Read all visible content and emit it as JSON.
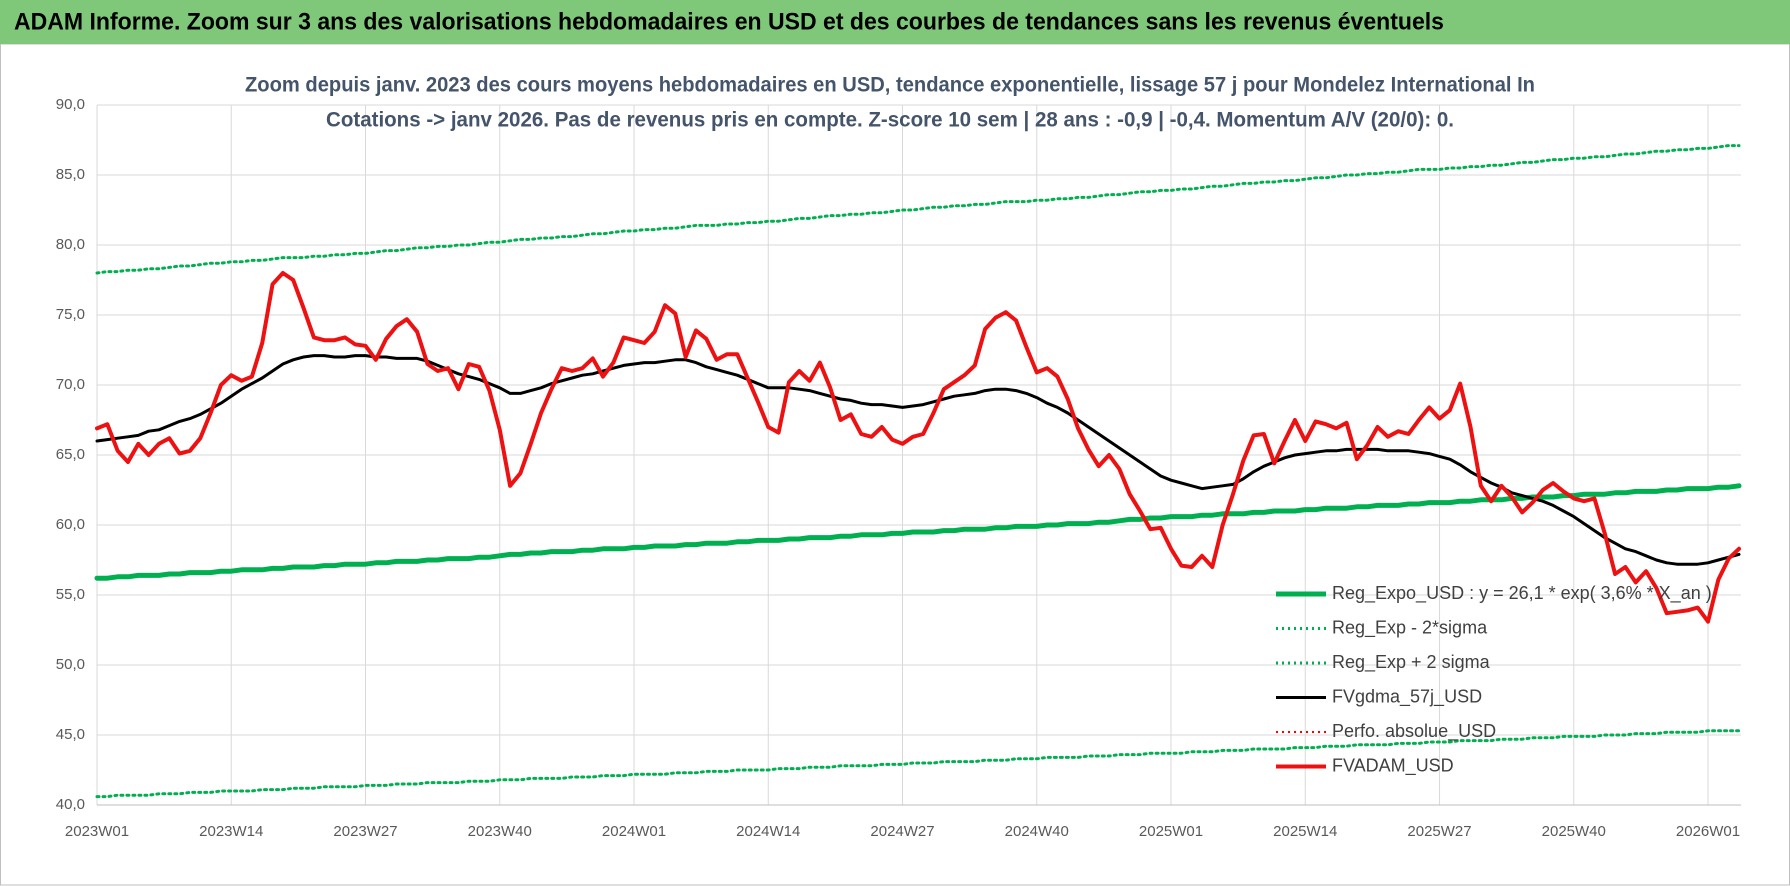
{
  "header": {
    "title": "ADAM Informe. Zoom sur 3 ans des valorisations hebdomadaires en USD et des courbes de tendances sans les revenus éventuels"
  },
  "chart_data": {
    "type": "line",
    "title": "Zoom depuis janv. 2023 des cours moyens hebdomadaires en USD, tendance exponentielle, lissage 57 j pour Mondelez International In",
    "subtitle": "Cotations -> janv 2026. Pas de revenus pris en compte. Z-score 10 sem | 28 ans : -0,9 | -0,4. Momentum A/V (20/0): 0.",
    "categories": [
      "2023W01",
      null,
      null,
      null,
      null,
      null,
      null,
      null,
      null,
      null,
      null,
      null,
      null,
      "2023W14",
      null,
      null,
      null,
      null,
      null,
      null,
      null,
      null,
      null,
      null,
      null,
      null,
      "2023W27",
      null,
      null,
      null,
      null,
      null,
      null,
      null,
      null,
      null,
      null,
      null,
      null,
      "2023W40",
      null,
      null,
      null,
      null,
      null,
      null,
      null,
      null,
      null,
      null,
      null,
      null,
      "2024W01",
      null,
      null,
      null,
      null,
      null,
      null,
      null,
      null,
      null,
      null,
      null,
      null,
      "2024W14",
      null,
      null,
      null,
      null,
      null,
      null,
      null,
      null,
      null,
      null,
      null,
      null,
      "2024W27",
      null,
      null,
      null,
      null,
      null,
      null,
      null,
      null,
      null,
      null,
      null,
      null,
      "2024W40",
      null,
      null,
      null,
      null,
      null,
      null,
      null,
      null,
      null,
      null,
      null,
      null,
      "2025W01",
      null,
      null,
      null,
      null,
      null,
      null,
      null,
      null,
      null,
      null,
      null,
      null,
      "2025W14",
      null,
      null,
      null,
      null,
      null,
      null,
      null,
      null,
      null,
      null,
      null,
      null,
      "2025W27",
      null,
      null,
      null,
      null,
      null,
      null,
      null,
      null,
      null,
      null,
      null,
      null,
      "2025W40",
      null,
      null,
      null,
      null,
      null,
      null,
      null,
      null,
      null,
      null,
      null,
      null,
      "2026W01",
      null,
      null,
      null
    ],
    "ylim": [
      40,
      90
    ],
    "yticks": [
      {
        "value": 40,
        "label": "40,0"
      },
      {
        "value": 45,
        "label": "45,0"
      },
      {
        "value": 50,
        "label": "50,0"
      },
      {
        "value": 55,
        "label": "55,0"
      },
      {
        "value": 60,
        "label": "60,0"
      },
      {
        "value": 65,
        "label": "65,0"
      },
      {
        "value": 70,
        "label": "70,0"
      },
      {
        "value": 75,
        "label": "75,0"
      },
      {
        "value": 80,
        "label": "80,0"
      },
      {
        "value": 85,
        "label": "85,0"
      },
      {
        "value": 90,
        "label": "90,0"
      }
    ],
    "grid": true,
    "legend": "bottom-right",
    "series": [
      {
        "name": "Reg_Expo_USD : y = 26,1 * exp( 3,6% * X_an )",
        "color": "#00b050",
        "line_style": "solid",
        "line_width": 5,
        "values": [
          56.2,
          56.2,
          56.3,
          56.3,
          56.4,
          56.4,
          56.4,
          56.5,
          56.5,
          56.6,
          56.6,
          56.6,
          56.7,
          56.7,
          56.8,
          56.8,
          56.8,
          56.9,
          56.9,
          57.0,
          57.0,
          57.0,
          57.1,
          57.1,
          57.2,
          57.2,
          57.2,
          57.3,
          57.3,
          57.4,
          57.4,
          57.4,
          57.5,
          57.5,
          57.6,
          57.6,
          57.6,
          57.7,
          57.7,
          57.8,
          57.9,
          57.9,
          58.0,
          58.0,
          58.1,
          58.1,
          58.1,
          58.2,
          58.2,
          58.3,
          58.3,
          58.3,
          58.4,
          58.4,
          58.5,
          58.5,
          58.5,
          58.6,
          58.6,
          58.7,
          58.7,
          58.7,
          58.8,
          58.8,
          58.9,
          58.9,
          58.9,
          59.0,
          59.0,
          59.1,
          59.1,
          59.1,
          59.2,
          59.2,
          59.3,
          59.3,
          59.3,
          59.4,
          59.4,
          59.5,
          59.5,
          59.5,
          59.6,
          59.6,
          59.7,
          59.7,
          59.7,
          59.8,
          59.8,
          59.9,
          59.9,
          59.9,
          60.0,
          60.0,
          60.1,
          60.1,
          60.1,
          60.2,
          60.2,
          60.3,
          60.4,
          60.4,
          60.5,
          60.5,
          60.6,
          60.6,
          60.6,
          60.7,
          60.7,
          60.8,
          60.8,
          60.8,
          60.9,
          60.9,
          61.0,
          61.0,
          61.0,
          61.1,
          61.1,
          61.2,
          61.2,
          61.2,
          61.3,
          61.3,
          61.4,
          61.4,
          61.4,
          61.5,
          61.5,
          61.6,
          61.6,
          61.6,
          61.7,
          61.7,
          61.8,
          61.8,
          61.8,
          61.9,
          61.9,
          62.0,
          62.0,
          62.0,
          62.1,
          62.1,
          62.2,
          62.2,
          62.2,
          62.3,
          62.3,
          62.4,
          62.4,
          62.4,
          62.5,
          62.5,
          62.6,
          62.6,
          62.6,
          62.7,
          62.7,
          62.8
        ]
      },
      {
        "name": "Reg_Exp - 2*sigma",
        "color": "#00b050",
        "line_style": "dotted",
        "line_width": 3,
        "values": [
          40.6,
          40.6,
          40.7,
          40.7,
          40.7,
          40.7,
          40.8,
          40.8,
          40.8,
          40.9,
          40.9,
          40.9,
          41.0,
          41.0,
          41.0,
          41.0,
          41.1,
          41.1,
          41.1,
          41.2,
          41.2,
          41.2,
          41.3,
          41.3,
          41.3,
          41.3,
          41.4,
          41.4,
          41.4,
          41.5,
          41.5,
          41.5,
          41.6,
          41.6,
          41.6,
          41.6,
          41.7,
          41.7,
          41.7,
          41.8,
          41.8,
          41.8,
          41.9,
          41.9,
          41.9,
          41.9,
          42.0,
          42.0,
          42.0,
          42.1,
          42.1,
          42.1,
          42.2,
          42.2,
          42.2,
          42.2,
          42.3,
          42.3,
          42.3,
          42.4,
          42.4,
          42.4,
          42.5,
          42.5,
          42.5,
          42.5,
          42.6,
          42.6,
          42.6,
          42.7,
          42.7,
          42.7,
          42.8,
          42.8,
          42.8,
          42.8,
          42.9,
          42.9,
          42.9,
          43.0,
          43.0,
          43.0,
          43.1,
          43.1,
          43.1,
          43.1,
          43.2,
          43.2,
          43.2,
          43.3,
          43.3,
          43.3,
          43.4,
          43.4,
          43.4,
          43.4,
          43.5,
          43.5,
          43.5,
          43.6,
          43.6,
          43.6,
          43.7,
          43.7,
          43.7,
          43.7,
          43.8,
          43.8,
          43.8,
          43.9,
          43.9,
          43.9,
          44.0,
          44.0,
          44.0,
          44.0,
          44.1,
          44.1,
          44.1,
          44.2,
          44.2,
          44.2,
          44.3,
          44.3,
          44.3,
          44.3,
          44.4,
          44.4,
          44.4,
          44.5,
          44.5,
          44.5,
          44.6,
          44.6,
          44.6,
          44.6,
          44.7,
          44.7,
          44.7,
          44.8,
          44.8,
          44.8,
          44.9,
          44.9,
          44.9,
          44.9,
          45.0,
          45.0,
          45.0,
          45.1,
          45.1,
          45.1,
          45.2,
          45.2,
          45.2,
          45.2,
          45.3,
          45.3,
          45.3,
          45.3
        ]
      },
      {
        "name": "Reg_Exp + 2 sigma",
        "color": "#00b050",
        "line_style": "dotted",
        "line_width": 3,
        "values": [
          78.0,
          78.1,
          78.1,
          78.2,
          78.2,
          78.3,
          78.3,
          78.4,
          78.5,
          78.5,
          78.6,
          78.7,
          78.7,
          78.8,
          78.8,
          78.9,
          78.9,
          79.0,
          79.1,
          79.1,
          79.1,
          79.2,
          79.2,
          79.3,
          79.3,
          79.4,
          79.4,
          79.5,
          79.6,
          79.6,
          79.7,
          79.8,
          79.8,
          79.9,
          79.9,
          80.0,
          80.0,
          80.1,
          80.2,
          80.2,
          80.3,
          80.4,
          80.4,
          80.5,
          80.5,
          80.6,
          80.6,
          80.7,
          80.8,
          80.8,
          80.9,
          81.0,
          81.0,
          81.1,
          81.1,
          81.2,
          81.2,
          81.3,
          81.4,
          81.4,
          81.4,
          81.5,
          81.5,
          81.6,
          81.6,
          81.7,
          81.7,
          81.8,
          81.9,
          81.9,
          82.0,
          82.1,
          82.1,
          82.2,
          82.2,
          82.3,
          82.3,
          82.4,
          82.5,
          82.5,
          82.6,
          82.7,
          82.7,
          82.8,
          82.8,
          82.9,
          82.9,
          83.0,
          83.1,
          83.1,
          83.1,
          83.2,
          83.2,
          83.3,
          83.3,
          83.4,
          83.4,
          83.5,
          83.6,
          83.6,
          83.7,
          83.8,
          83.8,
          83.9,
          83.9,
          84.0,
          84.0,
          84.1,
          84.2,
          84.2,
          84.3,
          84.4,
          84.4,
          84.5,
          84.5,
          84.6,
          84.6,
          84.7,
          84.8,
          84.8,
          84.9,
          85.0,
          85.0,
          85.1,
          85.1,
          85.2,
          85.2,
          85.3,
          85.4,
          85.4,
          85.4,
          85.5,
          85.5,
          85.6,
          85.6,
          85.7,
          85.7,
          85.8,
          85.9,
          85.9,
          86.0,
          86.1,
          86.1,
          86.2,
          86.2,
          86.3,
          86.3,
          86.4,
          86.5,
          86.5,
          86.6,
          86.7,
          86.7,
          86.8,
          86.8,
          86.9,
          86.9,
          87.0,
          87.1,
          87.1
        ]
      },
      {
        "name": "FVgdma_57j_USD",
        "color": "#000000",
        "line_style": "solid",
        "line_width": 3,
        "values": [
          66,
          66.1,
          66.2,
          66.3,
          66.4,
          66.7,
          66.8,
          67.1,
          67.4,
          67.6,
          67.9,
          68.3,
          68.7,
          69.2,
          69.7,
          70.1,
          70.5,
          71,
          71.5,
          71.8,
          72,
          72.1,
          72.1,
          72,
          72,
          72.1,
          72.1,
          72,
          72,
          71.9,
          71.9,
          71.9,
          71.7,
          71.4,
          71.1,
          70.8,
          70.6,
          70.4,
          70.1,
          69.8,
          69.4,
          69.4,
          69.6,
          69.8,
          70.1,
          70.3,
          70.5,
          70.7,
          70.8,
          71,
          71.2,
          71.4,
          71.5,
          71.6,
          71.6,
          71.7,
          71.8,
          71.8,
          71.6,
          71.3,
          71.1,
          70.9,
          70.7,
          70.4,
          70.1,
          69.8,
          69.8,
          69.8,
          69.7,
          69.6,
          69.4,
          69.2,
          69,
          68.9,
          68.7,
          68.6,
          68.6,
          68.5,
          68.4,
          68.5,
          68.6,
          68.8,
          69,
          69.2,
          69.3,
          69.4,
          69.6,
          69.7,
          69.7,
          69.6,
          69.4,
          69.1,
          68.7,
          68.4,
          68,
          67.5,
          67,
          66.5,
          66,
          65.5,
          65,
          64.5,
          64,
          63.5,
          63.2,
          63,
          62.8,
          62.6,
          62.7,
          62.8,
          62.9,
          63.3,
          63.8,
          64.2,
          64.5,
          64.8,
          65,
          65.1,
          65.2,
          65.3,
          65.3,
          65.4,
          65.4,
          65.4,
          65.4,
          65.3,
          65.3,
          65.3,
          65.2,
          65.1,
          64.9,
          64.7,
          64.3,
          63.8,
          63.4,
          63,
          62.7,
          62.3,
          62.1,
          61.9,
          61.7,
          61.4,
          61,
          60.6,
          60.1,
          59.6,
          59.1,
          58.7,
          58.3,
          58.1,
          57.8,
          57.5,
          57.3,
          57.2,
          57.2,
          57.2,
          57.3,
          57.5,
          57.7,
          57.9
        ]
      },
      {
        "name": "Perfo. absolue_USD",
        "color": "#ff0000",
        "line_style": "dotted",
        "line_width": 2,
        "values": [
          null,
          null,
          null,
          null,
          null,
          null,
          null,
          null,
          null,
          null,
          null,
          null,
          null,
          null,
          null,
          null,
          null,
          null,
          null,
          null,
          null,
          null,
          null,
          null,
          null,
          null,
          null,
          null,
          null,
          null,
          null,
          null,
          null,
          null,
          null,
          null,
          null,
          null,
          null,
          null,
          null,
          null,
          null,
          null,
          null,
          null,
          null,
          null,
          null,
          null,
          null,
          null,
          null,
          null,
          null,
          null,
          null,
          null,
          null,
          null,
          null,
          null,
          null,
          null,
          null,
          null,
          null,
          null,
          null,
          null,
          null,
          null,
          null,
          null,
          null,
          null,
          null,
          null,
          null,
          null,
          null,
          null,
          null,
          null,
          null,
          null,
          null,
          null,
          null,
          null,
          null,
          null,
          null,
          null,
          null,
          null,
          null,
          null,
          null,
          null,
          null,
          null,
          null,
          null,
          null,
          null,
          null,
          null,
          null,
          null,
          null,
          null,
          null,
          null,
          null,
          null,
          null,
          null,
          null,
          null,
          null,
          null,
          null,
          null,
          null,
          null,
          null,
          null,
          null,
          null,
          null,
          null,
          null,
          null,
          null,
          null,
          null,
          null,
          null,
          null,
          null,
          null,
          null,
          null,
          null,
          null,
          null,
          null,
          null,
          null,
          null,
          null,
          null,
          null,
          null,
          null,
          null,
          null,
          null,
          null
        ]
      },
      {
        "name": "FVADAM_USD",
        "color": "#ee1111",
        "line_style": "solid",
        "line_width": 4,
        "values": [
          66.9,
          67.2,
          65.3,
          64.5,
          65.8,
          65,
          65.8,
          66.2,
          65.1,
          65.3,
          66.2,
          68,
          70,
          70.7,
          70.3,
          70.6,
          73,
          77.2,
          78,
          77.5,
          75.5,
          73.4,
          73.2,
          73.2,
          73.4,
          72.9,
          72.8,
          71.8,
          73.3,
          74.2,
          74.7,
          73.8,
          71.5,
          71,
          71.2,
          69.7,
          71.5,
          71.3,
          69.6,
          66.8,
          62.8,
          63.7,
          65.8,
          68,
          69.7,
          71.2,
          71,
          71.2,
          71.9,
          70.6,
          71.6,
          73.4,
          73.2,
          73,
          73.8,
          75.7,
          75.1,
          72,
          73.9,
          73.3,
          71.8,
          72.2,
          72.2,
          70.5,
          68.8,
          67,
          66.6,
          70.2,
          71,
          70.3,
          71.6,
          69.8,
          67.5,
          67.9,
          66.5,
          66.3,
          67,
          66.1,
          65.8,
          66.3,
          66.5,
          68,
          69.7,
          70.2,
          70.7,
          71.4,
          74,
          74.8,
          75.2,
          74.6,
          72.7,
          70.9,
          71.2,
          70.6,
          69,
          66.9,
          65.4,
          64.2,
          65,
          64,
          62.2,
          61,
          59.7,
          59.8,
          58.3,
          57.1,
          57,
          57.8,
          57,
          60,
          62.2,
          64.6,
          66.4,
          66.5,
          64.4,
          66,
          67.5,
          66,
          67.4,
          67.2,
          66.9,
          67.3,
          64.7,
          65.7,
          67,
          66.3,
          66.7,
          66.5,
          67.5,
          68.4,
          67.6,
          68.2,
          70.1,
          67,
          62.8,
          61.7,
          62.8,
          62,
          60.9,
          61.6,
          62.5,
          63,
          62.4,
          61.9,
          61.7,
          61.9,
          59.4,
          56.5,
          57,
          55.9,
          56.7,
          55.5,
          53.7,
          53.8,
          53.9,
          54.1,
          53.1,
          56.1,
          57.6,
          58.3
        ]
      }
    ]
  }
}
